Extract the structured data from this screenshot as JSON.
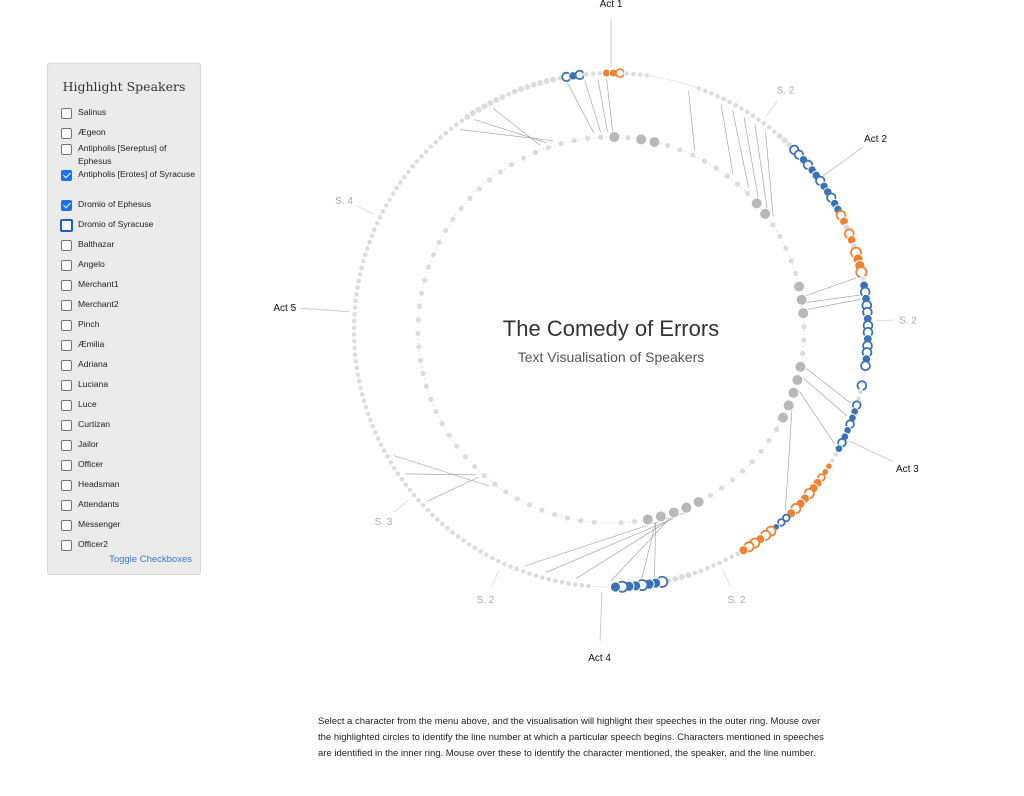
{
  "colors": {
    "blue": "#3a73b3",
    "orange": "#ee8433",
    "light": "#dcdcdc",
    "grey": "#b8b8b8",
    "panel": "#ebebeb",
    "link": "#3b78c4"
  },
  "panel": {
    "title": "Highlight Speakers",
    "speakers": [
      {
        "label": "Salinus",
        "checked": false
      },
      {
        "label": "Ægeon",
        "checked": false
      },
      {
        "label": "Antipholis [Sereptus] of Ephesus",
        "checked": false
      },
      {
        "label": "Antipholis [Erotes] of Syracuse",
        "checked": true
      },
      {
        "label": "Dromio of Ephesus",
        "checked": true
      },
      {
        "label": "Dromio of Syracuse",
        "checked": false,
        "focused": true
      },
      {
        "label": "Balthazar",
        "checked": false
      },
      {
        "label": "Angelo",
        "checked": false
      },
      {
        "label": "Merchant1",
        "checked": false
      },
      {
        "label": "Merchant2",
        "checked": false
      },
      {
        "label": "Pinch",
        "checked": false
      },
      {
        "label": "Æmilia",
        "checked": false
      },
      {
        "label": "Adriana",
        "checked": false
      },
      {
        "label": "Luciana",
        "checked": false
      },
      {
        "label": "Luce",
        "checked": false
      },
      {
        "label": "Curtizan",
        "checked": false
      },
      {
        "label": "Jailor",
        "checked": false
      },
      {
        "label": "Officer",
        "checked": false
      },
      {
        "label": "Headsman",
        "checked": false
      },
      {
        "label": "Attendants",
        "checked": false
      },
      {
        "label": "Messenger",
        "checked": false
      },
      {
        "label": "Officer2",
        "checked": false
      }
    ],
    "toggle_label": "Toggle Checkboxes"
  },
  "viz": {
    "title": "The Comedy of Errors",
    "subtitle": "Text Visualisation of Speakers",
    "acts": [
      "Act 1",
      "Act 2",
      "Act 3",
      "Act 4",
      "Act 5"
    ],
    "scenes": [
      "S. 2",
      "S. 2",
      "S. 2",
      "S. 2",
      "S. 3",
      "S. 4"
    ]
  },
  "description": "Select a character from the menu above, and the visualisation will highlight their speeches in the outer ring. Mouse over the highlighted circles to identify the line number at which a particular speech begins. Characters mentioned in speeches are identified in the inner ring. Mouse over these to identify the character mentioned, the speaker, and the line number."
}
